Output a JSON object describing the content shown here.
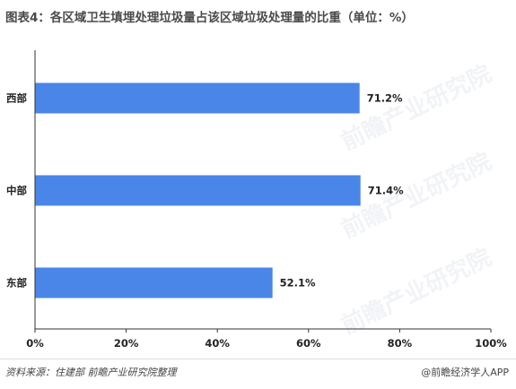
{
  "title": "图表4：各区域卫生填埋处理垃圾量占该区域垃圾处理量的比重（单位：%）",
  "source": "资料来源：住建部  前瞻产业研究院整理",
  "brand": "@前瞻经济学人APP",
  "watermark": "前瞻产业研究院",
  "colors": {
    "bar": "#4a86e8",
    "axis": "#333333",
    "text": "#222222"
  },
  "chart_data": {
    "type": "bar",
    "orientation": "horizontal",
    "categories": [
      "西部",
      "中部",
      "东部"
    ],
    "values": [
      71.2,
      71.4,
      52.1
    ],
    "value_labels": [
      "71.2%",
      "71.4%",
      "52.1%"
    ],
    "xlim": [
      0,
      100
    ],
    "xticks": [
      0,
      20,
      40,
      60,
      80,
      100
    ],
    "xtick_labels": [
      "0%",
      "20%",
      "40%",
      "60%",
      "80%",
      "100%"
    ],
    "grid": false,
    "legend": "none"
  }
}
